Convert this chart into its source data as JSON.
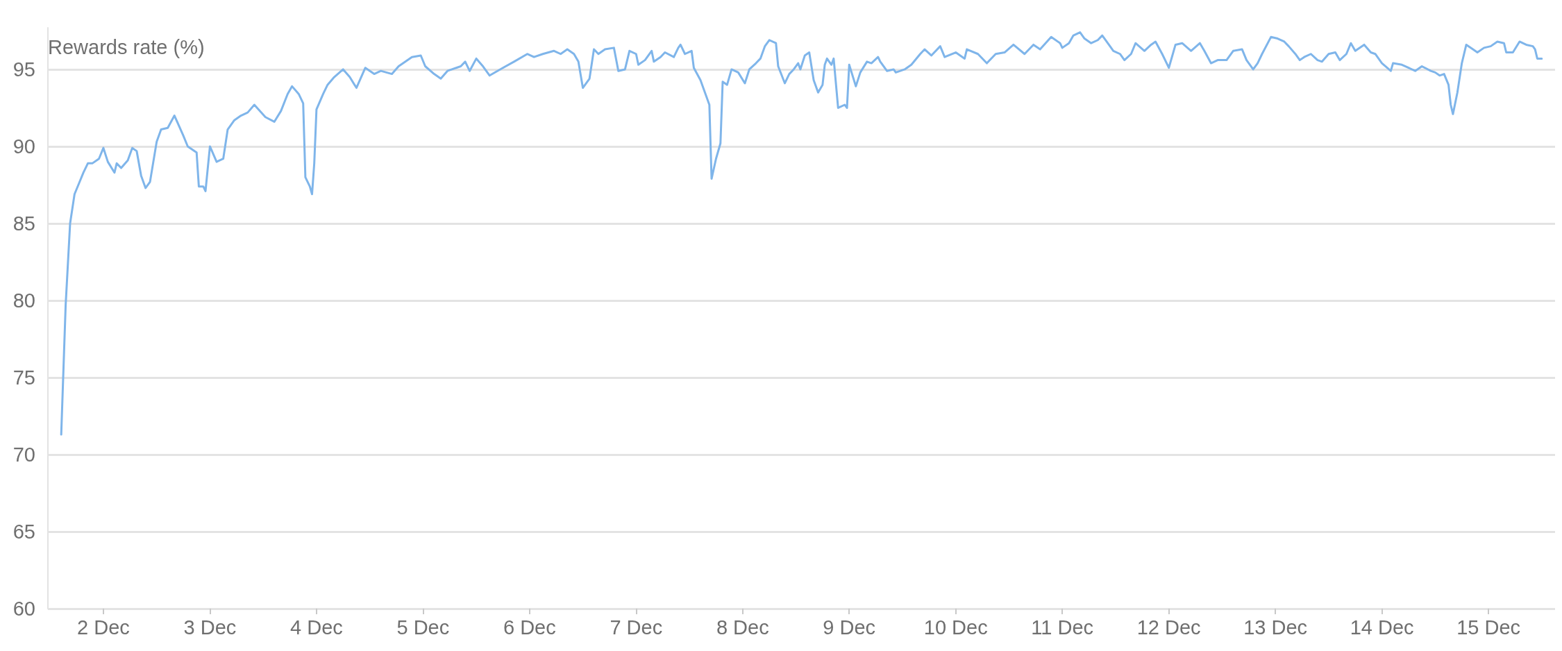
{
  "chart_data": {
    "type": "line",
    "ylabel": "Rewards rate (%)",
    "x": [
      "--12-01T14:30",
      "--12-01T15:30",
      "--12-01T16:30",
      "--12-01T17:30",
      "--12-01T18:30",
      "--12-01T19:30",
      "--12-01T20:30",
      "--12-01T21:30",
      "--12-01T23:00",
      "--12-02T00:00",
      "--12-02T01:00",
      "--12-02T02:30",
      "--12-02T03:00",
      "--12-02T04:00",
      "--12-02T05:30",
      "--12-02T06:30",
      "--12-02T07:30",
      "--12-02T08:30",
      "--12-02T09:30",
      "--12-02T10:30",
      "--12-02T12:00",
      "--12-02T13:00",
      "--12-02T14:30",
      "--12-02T16:00",
      "--12-02T18:00",
      "--12-02T19:00",
      "--12-02T21:00",
      "--12-02T21:30",
      "--12-02T22:30",
      "--12-02T23:00",
      "--12-03T00:00",
      "--12-03T01:30",
      "--12-03T03:00",
      "--12-03T04:00",
      "--12-03T05:30",
      "--12-03T07:00",
      "--12-03T08:30",
      "--12-03T10:00",
      "--12-03T12:30",
      "--12-03T14:30",
      "--12-03T16:00",
      "--12-03T17:30",
      "--12-03T18:30",
      "--12-03T20:00",
      "--12-03T21:00",
      "--12-03T21:30",
      "--12-03T22:30",
      "--12-03T23:00",
      "--12-03T23:30",
      "--12-04T00:00",
      "--12-04T01:30",
      "--12-04T02:30",
      "--12-04T04:00",
      "--12-04T06:00",
      "--12-04T07:30",
      "--12-04T09:00",
      "--12-04T11:00",
      "--12-04T13:00",
      "--12-04T14:30",
      "--12-04T17:00",
      "--12-04T18:30",
      "--12-04T21:30",
      "--12-04T23:30",
      "--12-05T00:30",
      "--12-05T02:30",
      "--12-05T04:00",
      "--12-05T05:30",
      "--12-05T08:30",
      "--12-05T09:30",
      "--12-05T10:30",
      "--12-05T12:00",
      "--12-05T13:30",
      "--12-05T15:00",
      "--12-05T18:00",
      "--12-05T20:30",
      "--12-05T23:30",
      "--12-06T01:00",
      "--12-06T03:00",
      "--12-06T05:30",
      "--12-06T07:00",
      "--12-06T08:30",
      "--12-06T10:00",
      "--12-06T11:00",
      "--12-06T12:00",
      "--12-06T13:30",
      "--12-06T14:30",
      "--12-06T15:30",
      "--12-06T17:00",
      "--12-06T19:00",
      "--12-06T20:00",
      "--12-06T21:30",
      "--12-06T22:30",
      "--12-07T00:00",
      "--12-07T00:30",
      "--12-07T02:00",
      "--12-07T03:30",
      "--12-07T04:00",
      "--12-07T05:30",
      "--12-07T06:30",
      "--12-07T08:30",
      "--12-07T09:30",
      "--12-07T10:00",
      "--12-07T11:00",
      "--12-07T12:30",
      "--12-07T13:00",
      "--12-07T14:30",
      "--12-07T15:30",
      "--12-07T16:30",
      "--12-07T17:00",
      "--12-07T18:00",
      "--12-07T19:00",
      "--12-07T19:30",
      "--12-07T20:30",
      "--12-07T21:30",
      "--12-07T23:00",
      "--12-08T00:30",
      "--12-08T01:30",
      "--12-08T03:00",
      "--12-08T04:00",
      "--12-08T05:00",
      "--12-08T06:00",
      "--12-08T07:30",
      "--12-08T08:00",
      "--12-08T09:30",
      "--12-08T10:30",
      "--12-08T11:30",
      "--12-08T12:30",
      "--12-08T13:00",
      "--12-08T14:00",
      "--12-08T15:00",
      "--12-08T16:00",
      "--12-08T17:00",
      "--12-08T18:00",
      "--12-08T18:30",
      "--12-08T19:00",
      "--12-08T20:00",
      "--12-08T20:30",
      "--12-08T21:30",
      "--12-08T23:00",
      "--12-08T23:30",
      "--12-09T00:00",
      "--12-09T01:30",
      "--12-09T02:30",
      "--12-09T04:00",
      "--12-09T05:00",
      "--12-09T06:30",
      "--12-09T07:00",
      "--12-09T08:30",
      "--12-09T10:00",
      "--12-09T10:30",
      "--12-09T12:30",
      "--12-09T14:00",
      "--12-09T16:00",
      "--12-09T17:00",
      "--12-09T18:30",
      "--12-09T20:30",
      "--12-09T21:30",
      "--12-10T00:00",
      "--12-10T02:00",
      "--12-10T02:30",
      "--12-10T05:00",
      "--12-10T07:00",
      "--12-10T09:00",
      "--12-10T11:00",
      "--12-10T13:00",
      "--12-10T15:30",
      "--12-10T17:30",
      "--12-10T19:00",
      "--12-10T21:30",
      "--12-10T23:30",
      "--12-11T00:00",
      "--12-11T01:30",
      "--12-11T02:30",
      "--12-11T04:00",
      "--12-11T05:00",
      "--12-11T06:30",
      "--12-11T08:00",
      "--12-11T09:00",
      "--12-11T10:30",
      "--12-11T11:30",
      "--12-11T13:00",
      "--12-11T14:00",
      "--12-11T15:30",
      "--12-11T16:30",
      "--12-11T18:30",
      "--12-11T20:00",
      "--12-11T21:00",
      "--12-11T22:30",
      "--12-12T00:00",
      "--12-12T01:30",
      "--12-12T03:00",
      "--12-12T05:00",
      "--12-12T07:00",
      "--12-12T08:00",
      "--12-12T09:30",
      "--12-12T11:00",
      "--12-12T13:00",
      "--12-12T14:30",
      "--12-12T16:30",
      "--12-12T17:30",
      "--12-12T19:00",
      "--12-12T20:00",
      "--12-12T21:00",
      "--12-12T23:00",
      "--12-13T00:30",
      "--12-13T02:00",
      "--12-13T03:00",
      "--12-13T04:30",
      "--12-13T05:30",
      "--12-13T06:30",
      "--12-13T08:00",
      "--12-13T09:30",
      "--12-13T10:30",
      "--12-13T12:00",
      "--12-13T13:30",
      "--12-13T14:30",
      "--12-13T16:00",
      "--12-13T17:00",
      "--12-13T18:00",
      "--12-13T20:00",
      "--12-13T21:30",
      "--12-13T22:30",
      "--12-14T00:00",
      "--12-14T02:00",
      "--12-14T02:30",
      "--12-14T04:30",
      "--12-14T06:00",
      "--12-14T07:30",
      "--12-14T09:00",
      "--12-14T11:00",
      "--12-14T12:00",
      "--12-14T13:00",
      "--12-14T14:00",
      "--12-14T15:00",
      "--12-14T15:30",
      "--12-14T16:00",
      "--12-14T17:00",
      "--12-14T18:00",
      "--12-14T19:00",
      "--12-14T20:30",
      "--12-14T21:30",
      "--12-14T23:00",
      "--12-15T00:30",
      "--12-15T02:00",
      "--12-15T03:30",
      "--12-15T04:00",
      "--12-15T05:30",
      "--12-15T07:00",
      "--12-15T08:30",
      "--12-15T10:00",
      "--12-15T10:30",
      "--12-15T11:00",
      "--12-15T12:00"
    ],
    "series": [
      {
        "color": "#7fb5ea",
        "values": [
          71.3,
          79.7,
          85.0,
          86.9,
          87.6,
          88.3,
          88.9,
          88.9,
          89.2,
          89.9,
          89.0,
          88.3,
          88.9,
          88.6,
          89.1,
          89.9,
          89.7,
          88.1,
          87.3,
          87.7,
          90.3,
          91.1,
          91.2,
          92.0,
          90.7,
          90.0,
          89.6,
          87.4,
          87.4,
          87.1,
          90.0,
          89.0,
          89.2,
          91.1,
          91.7,
          92.0,
          92.2,
          92.7,
          91.9,
          91.6,
          92.3,
          93.4,
          93.9,
          93.4,
          92.8,
          88.0,
          87.4,
          86.9,
          88.9,
          92.4,
          93.4,
          94.0,
          94.5,
          95.0,
          94.5,
          93.8,
          95.1,
          94.7,
          94.9,
          94.7,
          95.2,
          95.8,
          95.9,
          95.2,
          94.7,
          94.4,
          94.9,
          95.2,
          95.5,
          94.9,
          95.7,
          95.2,
          94.6,
          95.1,
          95.5,
          96.0,
          95.8,
          96.0,
          96.2,
          96.0,
          96.3,
          96.0,
          95.5,
          93.8,
          94.4,
          96.3,
          96.0,
          96.3,
          96.4,
          94.9,
          95.0,
          96.2,
          96.0,
          95.3,
          95.6,
          96.2,
          95.5,
          95.8,
          96.1,
          95.8,
          96.4,
          96.6,
          96.0,
          96.2,
          95.1,
          94.3,
          93.5,
          92.7,
          87.9,
          89.2,
          90.2,
          94.2,
          94.0,
          95.0,
          94.8,
          94.1,
          95.0,
          95.4,
          95.7,
          96.5,
          96.9,
          96.7,
          95.2,
          94.1,
          94.7,
          95.0,
          95.4,
          95.0,
          95.9,
          96.1,
          94.3,
          93.5,
          94.0,
          95.3,
          95.7,
          95.3,
          95.7,
          92.5,
          92.7,
          92.5,
          95.3,
          93.9,
          94.8,
          95.5,
          95.4,
          95.8,
          95.5,
          94.9,
          95.0,
          94.8,
          95.0,
          95.3,
          96.0,
          96.3,
          95.9,
          96.5,
          95.8,
          96.1,
          95.7,
          96.3,
          96.0,
          95.4,
          96.0,
          96.1,
          96.6,
          96.0,
          96.6,
          96.3,
          97.1,
          96.7,
          96.4,
          96.7,
          97.2,
          97.4,
          97.0,
          96.7,
          96.9,
          97.2,
          96.6,
          96.2,
          96.0,
          95.6,
          96.0,
          96.7,
          96.2,
          96.6,
          96.8,
          96.0,
          95.1,
          96.6,
          96.7,
          96.2,
          96.7,
          96.2,
          95.4,
          95.6,
          95.6,
          96.2,
          96.3,
          95.6,
          95.0,
          95.4,
          96.0,
          97.1,
          97.0,
          96.8,
          96.5,
          96.0,
          95.6,
          95.8,
          96.0,
          95.6,
          95.5,
          96.0,
          96.1,
          95.6,
          96.0,
          96.7,
          96.2,
          96.6,
          96.1,
          96.0,
          95.4,
          94.9,
          95.4,
          95.3,
          95.1,
          94.9,
          95.2,
          94.9,
          94.8,
          94.6,
          94.7,
          94.0,
          92.7,
          92.1,
          93.5,
          95.4,
          96.6,
          96.3,
          96.1,
          96.4,
          96.5,
          96.8,
          96.7,
          96.1,
          96.1,
          96.8,
          96.6,
          96.5,
          96.3,
          95.7,
          95.7
        ]
      }
    ],
    "xlim": [
      "--12-01T11:30",
      "--12-15T15:00"
    ],
    "xticks": [
      {
        "value": "--12-02",
        "label": "2 Dec"
      },
      {
        "value": "--12-03",
        "label": "3 Dec"
      },
      {
        "value": "--12-04",
        "label": "4 Dec"
      },
      {
        "value": "--12-05",
        "label": "5 Dec"
      },
      {
        "value": "--12-06",
        "label": "6 Dec"
      },
      {
        "value": "--12-07",
        "label": "7 Dec"
      },
      {
        "value": "--12-08",
        "label": "8 Dec"
      },
      {
        "value": "--12-09",
        "label": "9 Dec"
      },
      {
        "value": "--12-10",
        "label": "10 Dec"
      },
      {
        "value": "--12-11",
        "label": "11 Dec"
      },
      {
        "value": "--12-12",
        "label": "12 Dec"
      },
      {
        "value": "--12-13",
        "label": "13 Dec"
      },
      {
        "value": "--12-14",
        "label": "14 Dec"
      },
      {
        "value": "--12-15",
        "label": "15 Dec"
      }
    ],
    "ylim": [
      60,
      97.7
    ],
    "yticks": [
      60,
      65,
      70,
      75,
      80,
      85,
      90,
      95
    ],
    "grid": "y"
  }
}
